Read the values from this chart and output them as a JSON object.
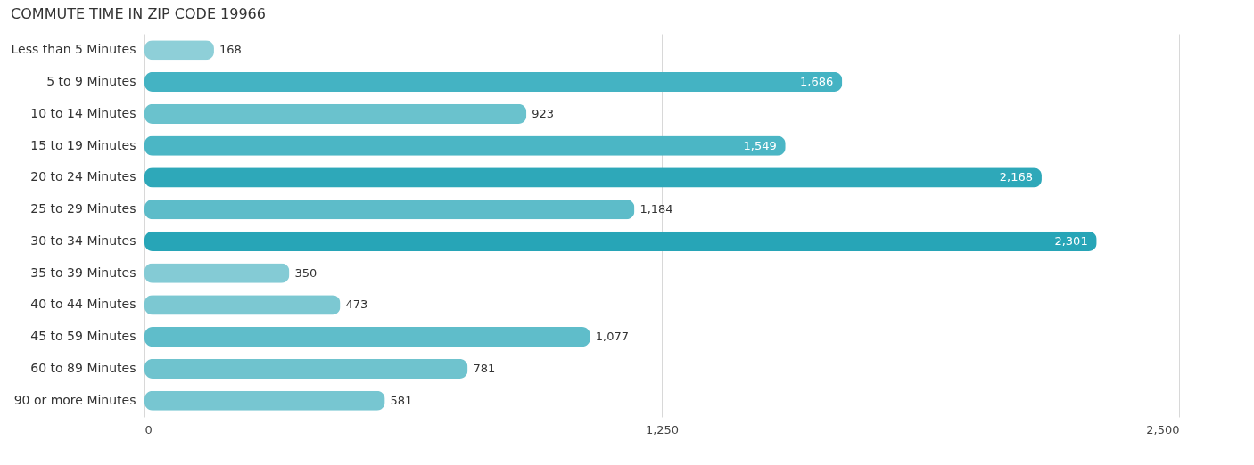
{
  "chart_data": {
    "type": "bar",
    "orientation": "horizontal",
    "title": "COMMUTE TIME IN ZIP CODE 19966",
    "categories": [
      "Less than 5 Minutes",
      "5 to 9 Minutes",
      "10 to 14 Minutes",
      "15 to 19 Minutes",
      "20 to 24 Minutes",
      "25 to 29 Minutes",
      "30 to 34 Minutes",
      "35 to 39 Minutes",
      "40 to 44 Minutes",
      "45 to 59 Minutes",
      "60 to 89 Minutes",
      "90 or more Minutes"
    ],
    "values": [
      168,
      1686,
      923,
      1549,
      2168,
      1184,
      2301,
      350,
      473,
      1077,
      781,
      581
    ],
    "colors": [
      "#8ecfd8",
      "#44b3c3",
      "#6ac2cd",
      "#4bb6c5",
      "#2ea8b9",
      "#5dbcc9",
      "#27a5b7",
      "#84cbd5",
      "#7cc8d2",
      "#5fbdca",
      "#6fc3ce",
      "#77c6d1"
    ],
    "value_labels": [
      "168",
      "1,686",
      "923",
      "1,549",
      "2,168",
      "1,184",
      "2,301",
      "350",
      "473",
      "1,077",
      "781",
      "581"
    ],
    "xlim": [
      0,
      2500
    ],
    "xticks": [
      0,
      {
        "value": 1250,
        "label": "1,250"
      },
      {
        "value": 2500,
        "label": "2,500"
      }
    ],
    "grid": "x"
  }
}
